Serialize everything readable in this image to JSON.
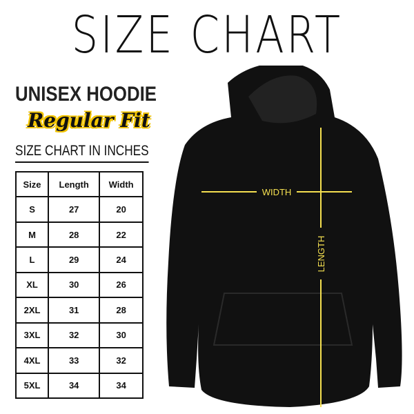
{
  "title": "SIZE CHART",
  "product": "UNISEX HOODIE",
  "fit": "Regular Fit",
  "unit_note": "SIZE CHART IN INCHES",
  "table": {
    "headers": [
      "Size",
      "Length",
      "Width"
    ],
    "rows": [
      [
        "S",
        "27",
        "20"
      ],
      [
        "M",
        "28",
        "22"
      ],
      [
        "L",
        "29",
        "24"
      ],
      [
        "XL",
        "30",
        "26"
      ],
      [
        "2XL",
        "31",
        "28"
      ],
      [
        "3XL",
        "32",
        "30"
      ],
      [
        "4XL",
        "33",
        "32"
      ],
      [
        "5XL",
        "34",
        "34"
      ]
    ]
  },
  "diagram": {
    "width_label": "WIDTH",
    "length_label": "LENGTH",
    "line_color": "#f5e050",
    "garment_color": "#111111"
  }
}
